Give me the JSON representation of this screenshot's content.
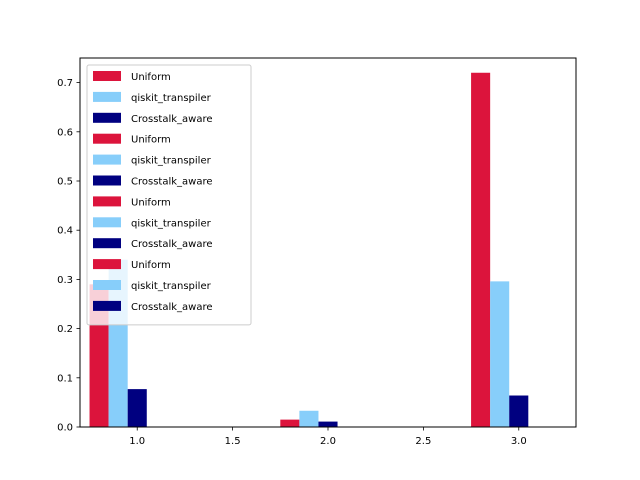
{
  "chart_data": {
    "type": "bar",
    "title": "",
    "xlabel": "",
    "ylabel": "",
    "xlim": [
      0.7,
      3.3
    ],
    "ylim": [
      0,
      0.75
    ],
    "x_ticks": [
      1.0,
      1.5,
      2.0,
      2.5,
      3.0
    ],
    "x_tick_labels": [
      "1.0",
      "1.5",
      "2.0",
      "2.5",
      "3.0"
    ],
    "y_ticks": [
      0,
      0.1,
      0.2,
      0.3,
      0.4,
      0.5,
      0.6,
      0.7
    ],
    "y_tick_labels": [
      "0.0",
      "0.1",
      "0.2",
      "0.3",
      "0.4",
      "0.5",
      "0.6",
      "0.7"
    ],
    "grid": false,
    "legend_position": "upper-left",
    "bar_width": 0.1,
    "series": [
      {
        "name": "Uniform",
        "color": "#dc143c",
        "x": [
          0.8,
          1.8,
          2.8
        ],
        "values": [
          0.29,
          0.015,
          0.72
        ]
      },
      {
        "name": "qiskit_transpiler",
        "color": "#87cefa",
        "x": [
          0.9,
          1.9,
          2.9
        ],
        "values": [
          0.34,
          0.033,
          0.296
        ]
      },
      {
        "name": "Crosstalk_aware",
        "color": "#000080",
        "x": [
          1.0,
          2.0,
          3.0
        ],
        "values": [
          0.077,
          0.011,
          0.064
        ]
      }
    ],
    "legend_entries": [
      {
        "label": "Uniform",
        "color": "#dc143c"
      },
      {
        "label": "qiskit_transpiler",
        "color": "#87cefa"
      },
      {
        "label": "Crosstalk_aware",
        "color": "#000080"
      },
      {
        "label": "Uniform",
        "color": "#dc143c"
      },
      {
        "label": "qiskit_transpiler",
        "color": "#87cefa"
      },
      {
        "label": "Crosstalk_aware",
        "color": "#000080"
      },
      {
        "label": "Uniform",
        "color": "#dc143c"
      },
      {
        "label": "qiskit_transpiler",
        "color": "#87cefa"
      },
      {
        "label": "Crosstalk_aware",
        "color": "#000080"
      },
      {
        "label": "Uniform",
        "color": "#dc143c"
      },
      {
        "label": "qiskit_transpiler",
        "color": "#87cefa"
      },
      {
        "label": "Crosstalk_aware",
        "color": "#000080"
      }
    ]
  }
}
